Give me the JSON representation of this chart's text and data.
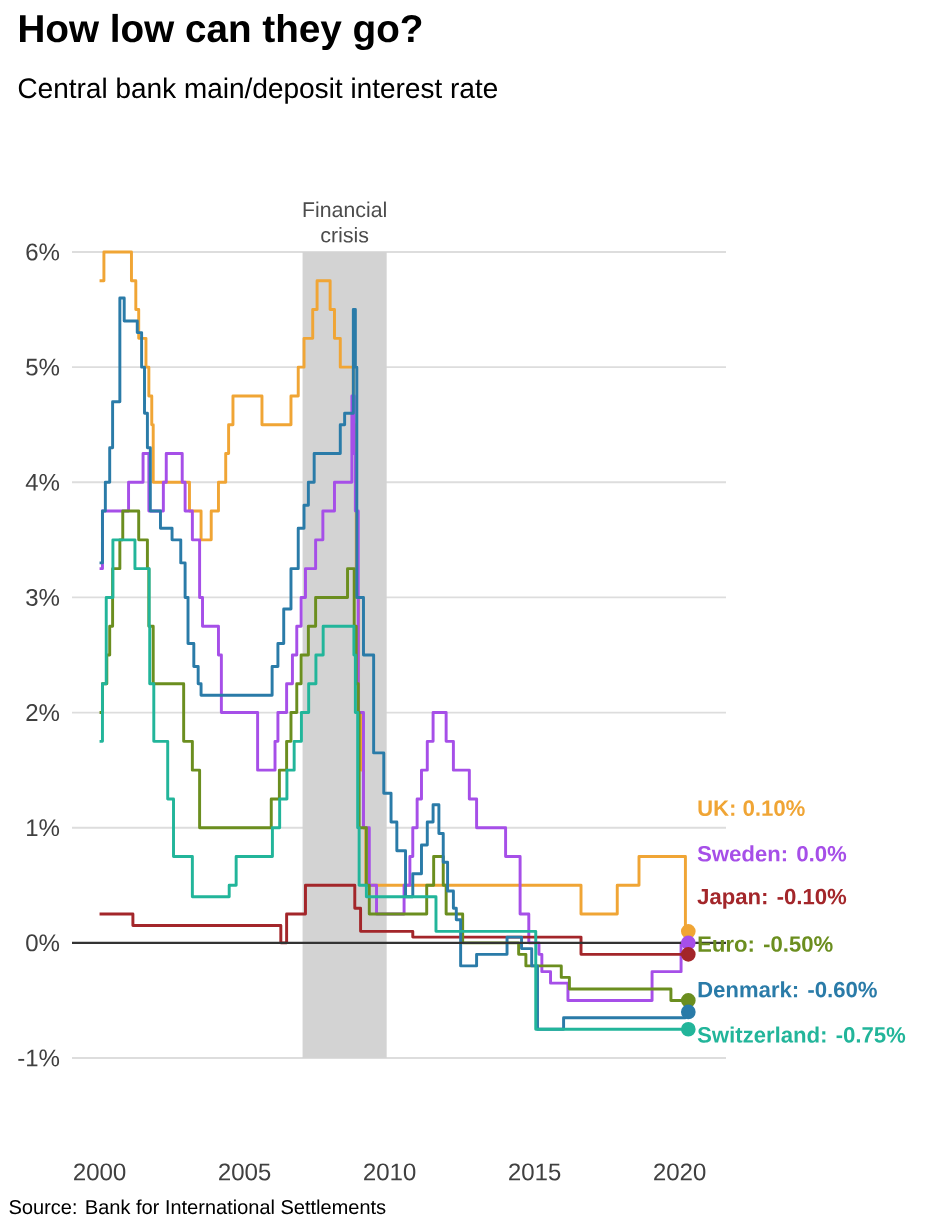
{
  "chart_data": {
    "type": "step",
    "title": "How low can they go?",
    "subtitle": "Central bank main/deposit interest rate",
    "annotations": [
      "Source: Bank for International Settlements"
    ],
    "xlim": [
      1999.05,
      2021.6
    ],
    "ylim": [
      -1,
      6
    ],
    "xticks": [
      2000,
      2005,
      2010,
      2015,
      2020
    ],
    "yticks": [
      {
        "value": -1,
        "label": "-1%"
      },
      {
        "value": 0,
        "label": "0%"
      },
      {
        "value": 1,
        "label": "1%"
      },
      {
        "value": 2,
        "label": "2%"
      },
      {
        "value": 3,
        "label": "3%"
      },
      {
        "value": 4,
        "label": "4%"
      },
      {
        "value": 5,
        "label": "5%"
      },
      {
        "value": 6,
        "label": "6%"
      }
    ],
    "grid": "y",
    "line_style": "solid",
    "bands": [
      {
        "axis": "x",
        "from": 2007.0,
        "to": 2009.9,
        "label": "Financial crisis",
        "color": "#d3d3d3"
      }
    ],
    "ref_lines": [
      {
        "axis": "y",
        "value": 0,
        "color": "#333333"
      }
    ],
    "series": [
      {
        "name": "UK: 0.10%",
        "color": "#f0a535",
        "x": [
          2000.0,
          2000.15,
          2001.1,
          2001.25,
          2001.35,
          2001.6,
          2001.7,
          2001.8,
          2001.85,
          2003.1,
          2003.5,
          2003.85,
          2004.1,
          2004.35,
          2004.45,
          2004.6,
          2005.6,
          2006.6,
          2006.85,
          2007.05,
          2007.35,
          2007.5,
          2007.95,
          2008.1,
          2008.3,
          2008.75,
          2008.85,
          2008.93,
          2009.03,
          2009.1,
          2009.18,
          2016.6,
          2017.85,
          2018.6,
          2020.2,
          2020.3
        ],
        "values": [
          5.75,
          6.0,
          5.75,
          5.5,
          5.25,
          5.0,
          4.75,
          4.5,
          4.0,
          3.75,
          3.5,
          3.75,
          4.0,
          4.25,
          4.5,
          4.75,
          4.5,
          4.75,
          5.0,
          5.25,
          5.5,
          5.75,
          5.5,
          5.25,
          5.0,
          4.5,
          3.0,
          2.0,
          1.5,
          1.0,
          0.5,
          0.25,
          0.5,
          0.75,
          0.1,
          0.1
        ]
      },
      {
        "name": "Sweden: 0.0%",
        "color": "#a64fe8",
        "x": [
          2000.0,
          2000.1,
          2001.0,
          2001.5,
          2001.7,
          2002.2,
          2002.3,
          2002.85,
          2002.95,
          2003.2,
          2003.45,
          2003.55,
          2004.1,
          2004.2,
          2005.45,
          2006.05,
          2006.15,
          2006.45,
          2006.65,
          2006.8,
          2006.95,
          2007.1,
          2007.45,
          2007.7,
          2008.1,
          2008.7,
          2008.78,
          2008.82,
          2008.92,
          2009.1,
          2009.3,
          2009.55,
          2010.5,
          2010.7,
          2010.8,
          2010.95,
          2011.1,
          2011.3,
          2011.5,
          2011.95,
          2012.2,
          2012.75,
          2013.0,
          2014.0,
          2014.5,
          2014.8,
          2015.15,
          2015.25,
          2015.55,
          2016.15,
          2019.05,
          2020.05,
          2020.3
        ],
        "values": [
          3.25,
          3.75,
          4.0,
          4.25,
          3.75,
          4.0,
          4.25,
          4.0,
          3.75,
          3.5,
          3.0,
          2.75,
          2.5,
          2.0,
          1.5,
          1.75,
          2.0,
          2.25,
          2.5,
          2.75,
          3.0,
          3.25,
          3.5,
          3.75,
          4.0,
          4.75,
          4.25,
          3.75,
          2.0,
          1.0,
          0.5,
          0.25,
          0.5,
          0.75,
          1.0,
          1.25,
          1.5,
          1.75,
          2.0,
          1.75,
          1.5,
          1.25,
          1.0,
          0.75,
          0.25,
          0.0,
          -0.1,
          -0.25,
          -0.35,
          -0.5,
          -0.25,
          0.0,
          0.0
        ]
      },
      {
        "name": "Japan: -0.10%",
        "color": "#a3262a",
        "x": [
          2000.0,
          2001.15,
          2006.25,
          2006.45,
          2007.1,
          2008.8,
          2009.0,
          2010.8,
          2016.6,
          2020.3
        ],
        "values": [
          0.25,
          0.15,
          0.0,
          0.25,
          0.5,
          0.3,
          0.1,
          0.05,
          -0.1,
          -0.1
        ]
      },
      {
        "name": "Euro: -0.50%",
        "color": "#6b8e1f",
        "x": [
          2000.0,
          2000.1,
          2000.25,
          2000.35,
          2000.45,
          2000.7,
          2000.8,
          2001.35,
          2001.65,
          2001.7,
          2001.85,
          2002.9,
          2003.2,
          2003.45,
          2005.92,
          2006.2,
          2006.45,
          2006.6,
          2006.8,
          2006.95,
          2007.2,
          2007.45,
          2008.55,
          2008.78,
          2008.85,
          2008.92,
          2008.95,
          2009.2,
          2009.3,
          2011.28,
          2011.52,
          2011.85,
          2011.95,
          2012.52,
          2014.45,
          2014.7,
          2015.92,
          2016.2,
          2019.7,
          2020.3
        ],
        "values": [
          2.0,
          2.25,
          2.5,
          2.75,
          3.25,
          3.5,
          3.75,
          3.5,
          3.25,
          2.75,
          2.25,
          1.75,
          1.5,
          1.0,
          1.25,
          1.5,
          1.75,
          2.0,
          2.25,
          2.5,
          2.75,
          3.0,
          3.25,
          2.75,
          2.25,
          2.0,
          1.0,
          0.5,
          0.25,
          0.5,
          0.75,
          0.5,
          0.25,
          0.0,
          -0.1,
          -0.2,
          -0.3,
          -0.4,
          -0.5,
          -0.5
        ]
      },
      {
        "name": "Denmark: -0.60%",
        "color": "#2a7ba8",
        "x": [
          2000.0,
          2000.1,
          2000.2,
          2000.35,
          2000.45,
          2000.7,
          2000.85,
          2001.3,
          2001.45,
          2001.55,
          2001.65,
          2001.75,
          2002.1,
          2002.5,
          2002.8,
          2002.95,
          2003.05,
          2003.25,
          2003.4,
          2003.5,
          2005.95,
          2006.15,
          2006.35,
          2006.6,
          2006.85,
          2007.05,
          2007.2,
          2007.4,
          2008.3,
          2008.45,
          2008.75,
          2008.82,
          2008.87,
          2009.1,
          2009.45,
          2009.8,
          2010.05,
          2010.25,
          2010.55,
          2010.8,
          2011.1,
          2011.3,
          2011.5,
          2011.7,
          2011.85,
          2012.0,
          2012.2,
          2012.3,
          2012.45,
          2013.0,
          2014.05,
          2014.55,
          2014.9,
          2015.1,
          2016.0,
          2020.2,
          2020.3
        ],
        "values": [
          3.3,
          3.75,
          4.0,
          4.3,
          4.7,
          5.6,
          5.4,
          5.3,
          5.0,
          4.6,
          4.3,
          3.75,
          3.6,
          3.5,
          3.3,
          3.0,
          2.6,
          2.4,
          2.25,
          2.15,
          2.4,
          2.6,
          2.9,
          3.25,
          3.6,
          3.8,
          4.0,
          4.25,
          4.5,
          4.6,
          5.5,
          5.0,
          3.0,
          2.5,
          1.65,
          1.3,
          1.05,
          0.8,
          0.4,
          0.6,
          0.85,
          1.05,
          1.2,
          0.95,
          0.7,
          0.45,
          0.3,
          0.2,
          -0.2,
          -0.1,
          0.05,
          -0.05,
          -0.2,
          -0.75,
          -0.65,
          -0.6,
          -0.6
        ]
      },
      {
        "name": "Switzerland: -0.75%",
        "color": "#22b59a",
        "x": [
          2000.0,
          2000.1,
          2000.23,
          2000.46,
          2001.22,
          2001.71,
          2001.73,
          2001.87,
          2002.35,
          2002.55,
          2003.2,
          2004.47,
          2004.71,
          2005.96,
          2006.21,
          2006.46,
          2006.71,
          2006.96,
          2007.21,
          2007.46,
          2007.71,
          2008.77,
          2008.82,
          2008.9,
          2008.95,
          2009.2,
          2011.6,
          2015.04,
          2020.3
        ],
        "values": [
          1.75,
          2.25,
          3.0,
          3.5,
          3.25,
          2.75,
          2.25,
          1.75,
          1.25,
          0.75,
          0.4,
          0.5,
          0.75,
          1.0,
          1.25,
          1.5,
          1.75,
          2.0,
          2.25,
          2.5,
          2.75,
          2.5,
          2.0,
          1.0,
          0.5,
          0.4,
          0.1,
          -0.75,
          -0.75
        ]
      }
    ]
  }
}
